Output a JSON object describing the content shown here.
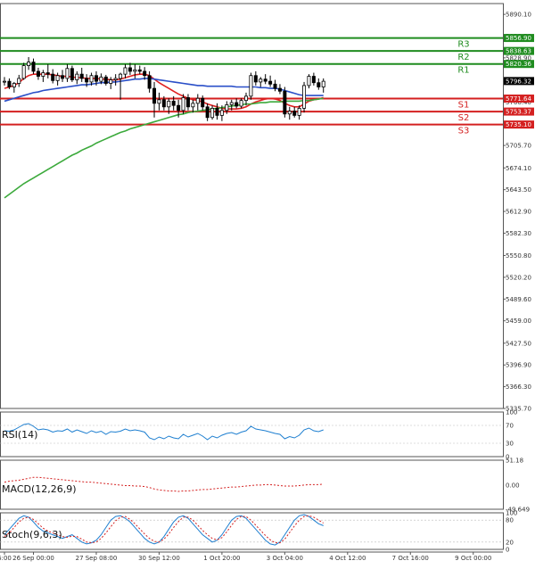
{
  "chart_data": {
    "type": "candlestick",
    "title": "",
    "timeframe": "2H",
    "y_axis": {
      "min": 5335.7,
      "max": 5905.3,
      "ticks": [
        5890.1,
        5859.7,
        5828.9,
        5796.32,
        5766.4,
        5735.1,
        5705.7,
        5674.1,
        5643.5,
        5612.9,
        5582.3,
        5550.8,
        5520.2,
        5489.6,
        5459.0,
        5427.5,
        5396.9,
        5366.3,
        5335.7
      ],
      "tick_labels": [
        "5890.10",
        "5859.70",
        "5828.90",
        "5796.32",
        "5766.40",
        "5735.10",
        "5705.70",
        "5674.10",
        "5643.50",
        "5612.90",
        "5582.30",
        "5550.80",
        "5520.20",
        "5489.60",
        "5459.00",
        "5427.50",
        "5396.90",
        "5366.30",
        "5335.70"
      ]
    },
    "x_axis": {
      "labels": [
        "6:00",
        "26 Sep 00:00",
        "27 Sep 08:00",
        "30 Sep 12:00",
        "1 Oct 20:00",
        "3 Oct 04:00",
        "4 Oct 12:00",
        "7 Oct 16:00",
        "9 Oct 00:00"
      ],
      "label_bar_index": [
        0,
        6,
        19,
        32,
        45,
        58,
        71,
        84,
        97
      ]
    },
    "levels": [
      {
        "name": "R3",
        "value": 5856.9,
        "label": "5856.90",
        "color": "#1f8c1f"
      },
      {
        "name": "R2",
        "value": 5838.63,
        "label": "5838.63",
        "color": "#1f8c1f"
      },
      {
        "name": "R1",
        "value": 5820.36,
        "label": "5820.36",
        "color": "#1f8c1f"
      },
      {
        "name": "S1",
        "value": 5771.64,
        "label": "5771.64",
        "color": "#d42020"
      },
      {
        "name": "S2",
        "value": 5753.37,
        "label": "5753.37",
        "color": "#d42020"
      },
      {
        "name": "S3",
        "value": 5735.1,
        "label": "5735.10",
        "color": "#d42020"
      }
    ],
    "current_price": {
      "value": 5796.32,
      "label": "5796.32"
    },
    "candles": [
      [
        5795,
        5802,
        5790,
        5796
      ],
      [
        5796,
        5800,
        5785,
        5788
      ],
      [
        5788,
        5795,
        5780,
        5793
      ],
      [
        5793,
        5805,
        5788,
        5800
      ],
      [
        5800,
        5822,
        5798,
        5818
      ],
      [
        5818,
        5830,
        5812,
        5823
      ],
      [
        5823,
        5828,
        5806,
        5810
      ],
      [
        5810,
        5815,
        5798,
        5803
      ],
      [
        5803,
        5812,
        5795,
        5808
      ],
      [
        5808,
        5820,
        5800,
        5806
      ],
      [
        5806,
        5813,
        5793,
        5797
      ],
      [
        5797,
        5808,
        5790,
        5804
      ],
      [
        5804,
        5812,
        5795,
        5800
      ],
      [
        5800,
        5820,
        5795,
        5814
      ],
      [
        5814,
        5818,
        5795,
        5798
      ],
      [
        5798,
        5810,
        5792,
        5806
      ],
      [
        5806,
        5815,
        5795,
        5800
      ],
      [
        5800,
        5806,
        5788,
        5795
      ],
      [
        5795,
        5808,
        5790,
        5804
      ],
      [
        5804,
        5810,
        5790,
        5796
      ],
      [
        5796,
        5807,
        5792,
        5802
      ],
      [
        5802,
        5805,
        5790,
        5793
      ],
      [
        5793,
        5802,
        5785,
        5798
      ],
      [
        5798,
        5806,
        5790,
        5800
      ],
      [
        5800,
        5808,
        5770,
        5806
      ],
      [
        5806,
        5820,
        5800,
        5815
      ],
      [
        5815,
        5822,
        5805,
        5810
      ],
      [
        5810,
        5820,
        5800,
        5812
      ],
      [
        5812,
        5818,
        5806,
        5810
      ],
      [
        5810,
        5816,
        5798,
        5804
      ],
      [
        5804,
        5810,
        5780,
        5786
      ],
      [
        5786,
        5795,
        5745,
        5765
      ],
      [
        5765,
        5780,
        5755,
        5770
      ],
      [
        5770,
        5775,
        5755,
        5760
      ],
      [
        5760,
        5772,
        5750,
        5768
      ],
      [
        5768,
        5775,
        5755,
        5762
      ],
      [
        5762,
        5770,
        5745,
        5755
      ],
      [
        5755,
        5778,
        5750,
        5773
      ],
      [
        5773,
        5778,
        5755,
        5760
      ],
      [
        5760,
        5770,
        5752,
        5765
      ],
      [
        5765,
        5778,
        5755,
        5772
      ],
      [
        5772,
        5776,
        5755,
        5760
      ],
      [
        5760,
        5765,
        5740,
        5745
      ],
      [
        5745,
        5762,
        5742,
        5758
      ],
      [
        5758,
        5765,
        5742,
        5748
      ],
      [
        5748,
        5762,
        5740,
        5755
      ],
      [
        5755,
        5768,
        5750,
        5763
      ],
      [
        5763,
        5770,
        5755,
        5766
      ],
      [
        5766,
        5772,
        5758,
        5761
      ],
      [
        5761,
        5772,
        5758,
        5769
      ],
      [
        5769,
        5780,
        5762,
        5775
      ],
      [
        5775,
        5808,
        5770,
        5804
      ],
      [
        5804,
        5810,
        5790,
        5795
      ],
      [
        5795,
        5802,
        5788,
        5799
      ],
      [
        5799,
        5806,
        5792,
        5796
      ],
      [
        5796,
        5804,
        5788,
        5792
      ],
      [
        5792,
        5798,
        5782,
        5786
      ],
      [
        5786,
        5792,
        5778,
        5782
      ],
      [
        5782,
        5788,
        5745,
        5750
      ],
      [
        5750,
        5760,
        5742,
        5754
      ],
      [
        5754,
        5760,
        5745,
        5748
      ],
      [
        5748,
        5762,
        5742,
        5758
      ],
      [
        5758,
        5795,
        5752,
        5790
      ],
      [
        5790,
        5806,
        5786,
        5803
      ],
      [
        5803,
        5808,
        5790,
        5794
      ],
      [
        5794,
        5800,
        5784,
        5788
      ],
      [
        5788,
        5800,
        5780,
        5796
      ]
    ],
    "series": [
      {
        "name": "MA red (fast)",
        "color": "#e02020",
        "values": [
          5786,
          5788,
          5790,
          5794,
          5800,
          5804,
          5806,
          5806,
          5806,
          5806,
          5805,
          5804,
          5803,
          5803,
          5802,
          5801,
          5801,
          5800,
          5800,
          5800,
          5799,
          5799,
          5798,
          5798,
          5799,
          5801,
          5803,
          5805,
          5806,
          5806,
          5804,
          5799,
          5794,
          5790,
          5786,
          5782,
          5778,
          5775,
          5772,
          5770,
          5769,
          5767,
          5764,
          5762,
          5760,
          5758,
          5757,
          5757,
          5757,
          5758,
          5760,
          5764,
          5767,
          5769,
          5771,
          5772,
          5771,
          5769,
          5765,
          5762,
          5760,
          5760,
          5764,
          5768,
          5770,
          5771,
          5773
        ]
      },
      {
        "name": "MA blue (medium)",
        "color": "#2a4fc8",
        "values": [
          5768,
          5770,
          5772,
          5774,
          5776,
          5778,
          5780,
          5781,
          5783,
          5784,
          5785,
          5786,
          5787,
          5788,
          5789,
          5790,
          5791,
          5791,
          5792,
          5793,
          5794,
          5794,
          5795,
          5795,
          5796,
          5797,
          5798,
          5799,
          5799,
          5800,
          5800,
          5799,
          5798,
          5797,
          5796,
          5795,
          5794,
          5793,
          5792,
          5791,
          5790,
          5790,
          5789,
          5789,
          5789,
          5789,
          5789,
          5789,
          5788,
          5788,
          5788,
          5788,
          5788,
          5787,
          5787,
          5786,
          5786,
          5785,
          5783,
          5781,
          5779,
          5777,
          5776,
          5776,
          5776,
          5776,
          5776
        ]
      },
      {
        "name": "MA green (slow)",
        "color": "#3caa3c",
        "values": [
          5632,
          5637,
          5642,
          5647,
          5652,
          5656,
          5660,
          5664,
          5668,
          5672,
          5676,
          5680,
          5684,
          5688,
          5692,
          5695,
          5699,
          5702,
          5705,
          5709,
          5712,
          5715,
          5718,
          5721,
          5724,
          5726,
          5729,
          5731,
          5733,
          5735,
          5737,
          5739,
          5741,
          5743,
          5745,
          5747,
          5749,
          5750,
          5752,
          5753,
          5754,
          5755,
          5756,
          5757,
          5758,
          5759,
          5760,
          5761,
          5762,
          5763,
          5764,
          5764,
          5765,
          5766,
          5766,
          5767,
          5767,
          5767,
          5768,
          5768,
          5768,
          5768,
          5769,
          5769,
          5770,
          5771,
          5772
        ]
      }
    ],
    "indicators": {
      "rsi": {
        "label": "RSI(14)",
        "scale_labels": [
          "100",
          "70",
          "30",
          "0"
        ],
        "color": "#1e7fd0",
        "values": [
          58,
          57,
          60,
          66,
          72,
          74,
          68,
          60,
          62,
          60,
          55,
          58,
          57,
          62,
          55,
          60,
          56,
          52,
          58,
          54,
          57,
          50,
          56,
          55,
          57,
          62,
          58,
          60,
          58,
          55,
          42,
          38,
          44,
          40,
          46,
          42,
          40,
          50,
          44,
          48,
          52,
          46,
          38,
          46,
          42,
          48,
          52,
          54,
          50,
          55,
          58,
          68,
          62,
          60,
          58,
          55,
          52,
          50,
          40,
          45,
          42,
          48,
          60,
          64,
          58,
          56,
          60
        ]
      },
      "macd": {
        "label": "MACD(12,26,9)",
        "scale_labels": [
          "51.18",
          "0.00",
          "-49.649"
        ],
        "color": "#d42020",
        "values": [
          6,
          8,
          9,
          10,
          12,
          14,
          16,
          16,
          15,
          14,
          13,
          12,
          11,
          10,
          9,
          8,
          7,
          6,
          6,
          5,
          4,
          3,
          2,
          1,
          0,
          -1,
          -1,
          -2,
          -2,
          -3,
          -5,
          -8,
          -10,
          -11,
          -12,
          -12,
          -13,
          -12,
          -12,
          -11,
          -10,
          -9,
          -9,
          -8,
          -7,
          -6,
          -5,
          -4,
          -4,
          -3,
          -2,
          -1,
          0,
          0,
          1,
          1,
          0,
          -1,
          -2,
          -2,
          -2,
          -1,
          0,
          1,
          1,
          1,
          2
        ]
      },
      "stoch": {
        "label": "Stoch(9,6,3)",
        "scale_labels": [
          "100",
          "80",
          "20",
          "0"
        ],
        "k_color": "#1e7fd0",
        "d_color": "#d42020",
        "k": [
          40,
          55,
          70,
          85,
          92,
          88,
          75,
          60,
          50,
          45,
          40,
          35,
          30,
          35,
          40,
          30,
          20,
          15,
          18,
          25,
          40,
          60,
          80,
          90,
          92,
          85,
          75,
          60,
          45,
          30,
          20,
          15,
          20,
          35,
          55,
          75,
          88,
          92,
          85,
          70,
          55,
          40,
          30,
          20,
          25,
          40,
          60,
          80,
          90,
          92,
          85,
          70,
          55,
          40,
          25,
          15,
          12,
          20,
          40,
          60,
          80,
          92,
          95,
          90,
          80,
          70,
          65
        ],
        "d": [
          35,
          45,
          60,
          75,
          85,
          88,
          82,
          70,
          58,
          50,
          45,
          40,
          35,
          33,
          36,
          35,
          28,
          20,
          18,
          20,
          30,
          45,
          62,
          78,
          88,
          90,
          82,
          70,
          56,
          42,
          30,
          22,
          20,
          28,
          42,
          60,
          76,
          88,
          88,
          80,
          66,
          52,
          40,
          30,
          26,
          32,
          48,
          66,
          82,
          90,
          90,
          80,
          66,
          52,
          38,
          26,
          18,
          18,
          28,
          46,
          64,
          80,
          90,
          92,
          88,
          80,
          72
        ]
      }
    }
  }
}
